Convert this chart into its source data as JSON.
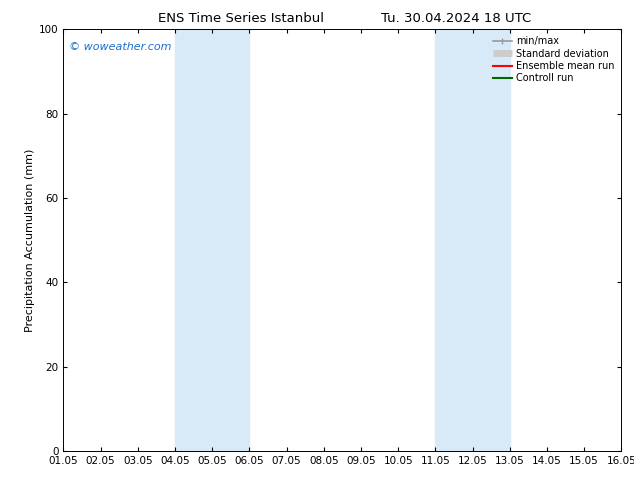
{
  "title_left": "ENS Time Series Istanbul",
  "title_right": "Tu. 30.04.2024 18 UTC",
  "ylabel": "Precipitation Accumulation (mm)",
  "watermark": "© woweather.com",
  "watermark_color": "#1a6fcc",
  "ylim": [
    0,
    100
  ],
  "yticks": [
    0,
    20,
    40,
    60,
    80,
    100
  ],
  "x_start": 1.05,
  "x_end": 16.05,
  "xtick_labels": [
    "01.05",
    "02.05",
    "03.05",
    "04.05",
    "05.05",
    "06.05",
    "07.05",
    "08.05",
    "09.05",
    "10.05",
    "11.05",
    "12.05",
    "13.05",
    "14.05",
    "15.05",
    "16.05"
  ],
  "xtick_positions": [
    1.05,
    2.05,
    3.05,
    4.05,
    5.05,
    6.05,
    7.05,
    8.05,
    9.05,
    10.05,
    11.05,
    12.05,
    13.05,
    14.05,
    15.05,
    16.05
  ],
  "shaded_bands": [
    {
      "x_start": 4.05,
      "x_end": 6.05
    },
    {
      "x_start": 11.05,
      "x_end": 13.05
    }
  ],
  "band_color": "#d8eaf8",
  "background_color": "#ffffff",
  "legend_entries": [
    {
      "label": "min/max",
      "color": "#999999",
      "linewidth": 1.2
    },
    {
      "label": "Standard deviation",
      "color": "#cccccc",
      "linewidth": 5
    },
    {
      "label": "Ensemble mean run",
      "color": "#ff0000",
      "linewidth": 1.5
    },
    {
      "label": "Controll run",
      "color": "#006600",
      "linewidth": 1.5
    }
  ],
  "title_fontsize": 9.5,
  "tick_fontsize": 7.5,
  "ylabel_fontsize": 8,
  "legend_fontsize": 7,
  "watermark_fontsize": 8
}
